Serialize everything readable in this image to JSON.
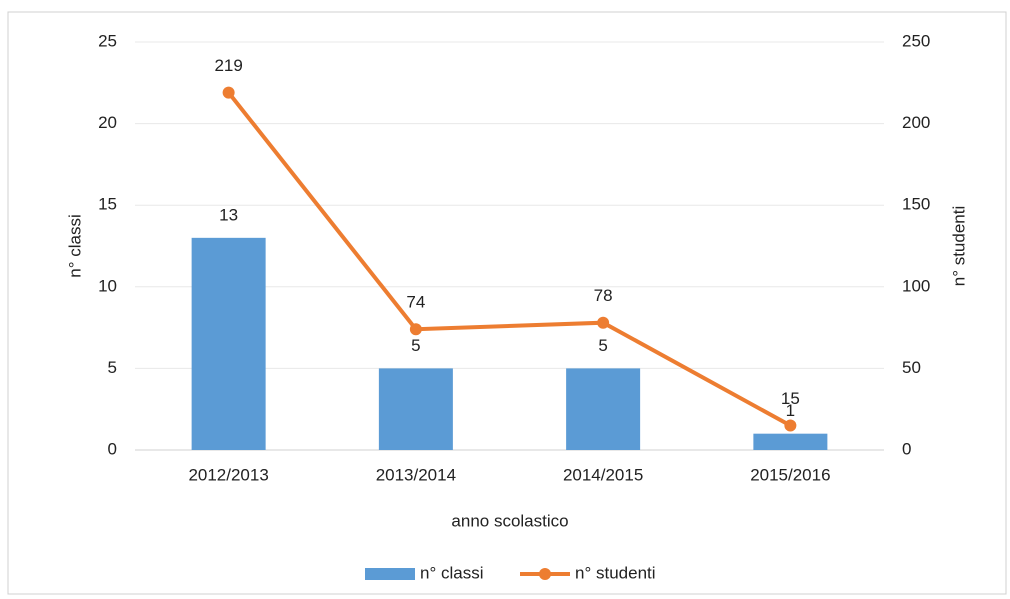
{
  "chart_data": {
    "type": "bar",
    "categories": [
      "2012/2013",
      "2013/2014",
      "2014/2015",
      "2015/2016"
    ],
    "x_label": "anno scolastico",
    "y_label": "n° classi",
    "y2_label": "n° studenti",
    "series": [
      {
        "name": "n° classi",
        "type": "bar",
        "color": "#5b9bd5",
        "values": [
          13,
          5,
          5,
          1
        ]
      },
      {
        "name": "n° studenti",
        "type": "line",
        "axis": "y2",
        "color": "#ed7d31",
        "values": [
          219,
          74,
          78,
          15
        ]
      }
    ],
    "ylim": [
      0,
      25
    ],
    "yticks": [
      0,
      5,
      10,
      15,
      20,
      25
    ],
    "y2lim": [
      0,
      250
    ],
    "y2ticks": [
      0,
      50,
      100,
      150,
      200,
      250
    ],
    "grid": true,
    "legend": "bottom"
  }
}
